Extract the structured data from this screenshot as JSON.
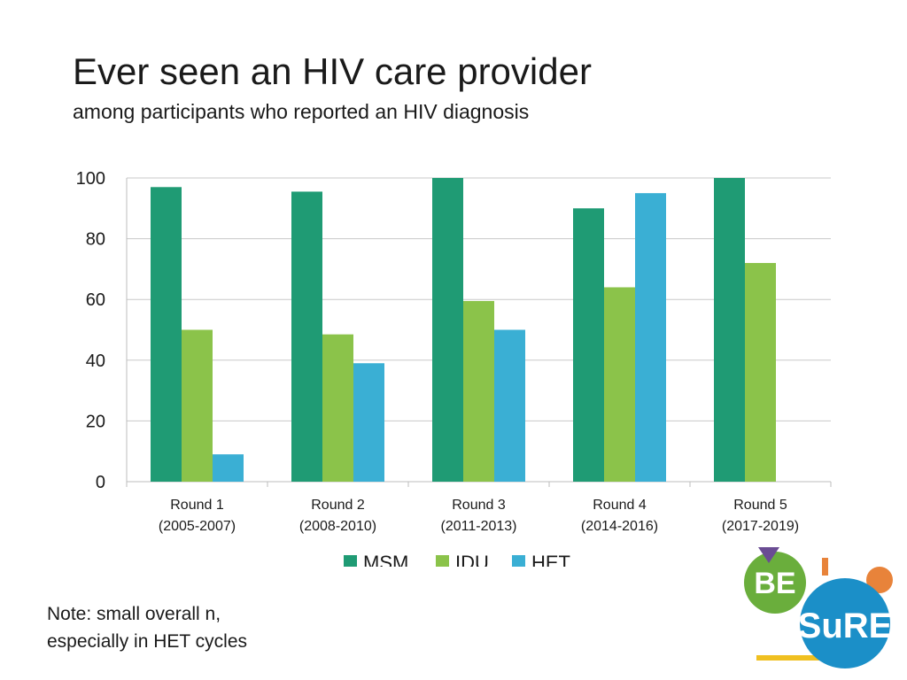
{
  "slide": {
    "title": "Ever seen an HIV care provider",
    "subtitle": "among participants who reported an HIV diagnosis"
  },
  "note": {
    "line1": "Note: small overall n,",
    "line2": "especially in HET cycles"
  },
  "logo": {
    "word_top": "BE",
    "word_bottom": "SuRE",
    "colors": {
      "green": "#6aae3c",
      "blue": "#1b8fc8",
      "purple": "#6a4c93",
      "orange": "#e8833a",
      "yellow": "#f0c020"
    }
  },
  "chart_data": {
    "type": "bar",
    "title": "Ever seen an HIV care provider",
    "subtitle": "among participants who reported an HIV diagnosis",
    "xlabel": "",
    "ylabel": "",
    "ylim": [
      0,
      100
    ],
    "yticks": [
      0,
      20,
      40,
      60,
      80,
      100
    ],
    "grid": true,
    "legend_position": "bottom-center",
    "categories": [
      [
        "Round 1",
        "(2005-2007)"
      ],
      [
        "Round 2",
        "(2008-2010)"
      ],
      [
        "Round 3",
        "(2011-2013)"
      ],
      [
        "Round 4",
        "(2014-2016)"
      ],
      [
        "Round 5",
        "(2017-2019)"
      ]
    ],
    "series": [
      {
        "name": "MSM",
        "color": "#1f9b74",
        "values": [
          97,
          95.5,
          100,
          90,
          100
        ]
      },
      {
        "name": "IDU",
        "color": "#8bc34a",
        "values": [
          50,
          48.5,
          59.5,
          64,
          72
        ]
      },
      {
        "name": "HET",
        "color": "#3aafd4",
        "values": [
          9,
          39,
          50,
          95,
          null
        ]
      }
    ]
  }
}
